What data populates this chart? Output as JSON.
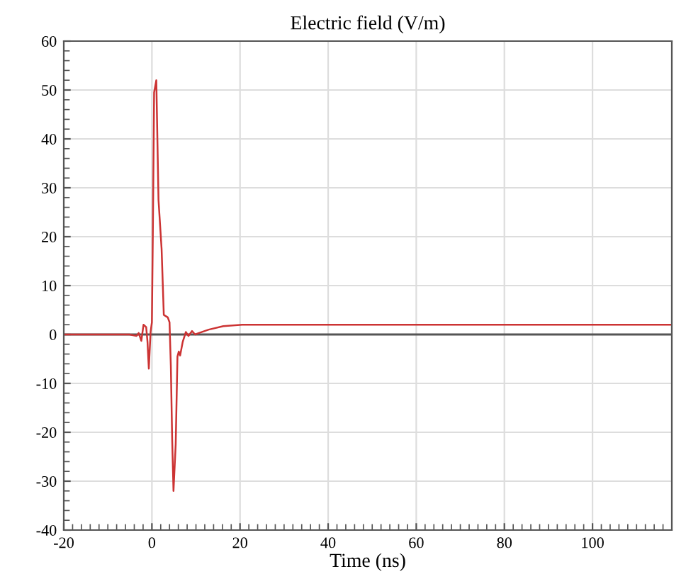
{
  "chart_data": {
    "type": "line",
    "title": "Electric field (V/m)",
    "xlabel": "Time (ns)",
    "x": [
      -20,
      -9,
      -5.1,
      -3.5,
      -3,
      -2.4,
      -1.9,
      -1.3,
      -1,
      -0.7,
      -0.3,
      0,
      0.2,
      0.5,
      1,
      1.5,
      2.2,
      2.7,
      3.6,
      4,
      4.3,
      4.6,
      4.9,
      5.4,
      5.8,
      6.1,
      6.4,
      7,
      7.7,
      8.3,
      9.1,
      9.8,
      10.7,
      12.9,
      16.2,
      20.5,
      30,
      60,
      90,
      118
    ],
    "series": [
      {
        "color": "#cc3333",
        "values": [
          0,
          0,
          0,
          -0.3,
          0.3,
          -1.3,
          2,
          1.5,
          -1.5,
          -7,
          0.5,
          2.5,
          19.5,
          49.5,
          52,
          27.5,
          17.5,
          4,
          3.5,
          2.5,
          -6.5,
          -21.5,
          -32,
          -22.5,
          -4.5,
          -3.5,
          -4.3,
          -1.5,
          0.5,
          -0.3,
          0.7,
          0,
          0.3,
          1,
          1.7,
          2,
          2,
          2,
          2,
          2
        ]
      }
    ],
    "xlim": [
      -20,
      118
    ],
    "xticks": [
      -20,
      0,
      20,
      40,
      60,
      80,
      100
    ],
    "ylim": [
      -40,
      60
    ],
    "yticks": [
      -40,
      -30,
      -20,
      -10,
      0,
      10,
      20,
      30,
      40,
      50,
      60
    ],
    "ref_lines": [
      {
        "axis": "y",
        "value": 0,
        "color": "#555555"
      }
    ],
    "grid": true,
    "legend": false,
    "line_style": "solid",
    "marker": "none"
  }
}
